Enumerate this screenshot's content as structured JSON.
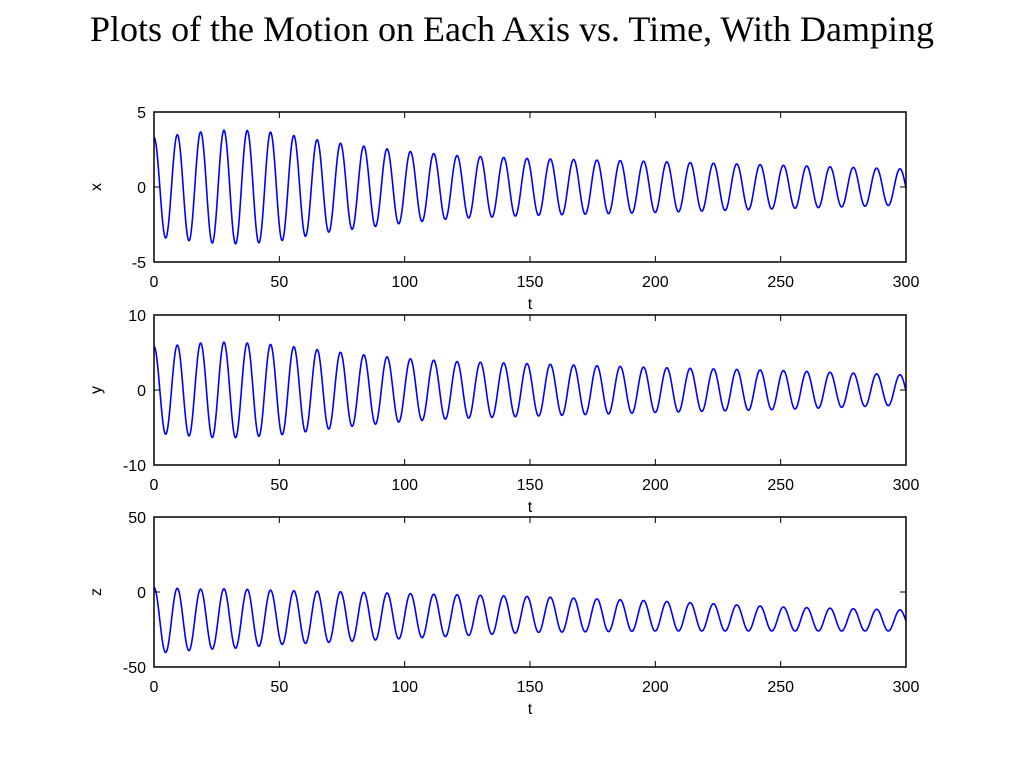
{
  "title": "Plots of the Motion on Each Axis vs. Time, With Damping",
  "line_color": "#0000ff",
  "chart_data": [
    {
      "type": "line",
      "title": "",
      "xlabel": "t",
      "ylabel": "x",
      "xlim": [
        0,
        300
      ],
      "ylim": [
        -5,
        5
      ],
      "xticks": [
        "0",
        "50",
        "100",
        "150",
        "200",
        "250",
        "300"
      ],
      "yticks": [
        "-5",
        "0",
        "5"
      ],
      "grid": false,
      "series": [
        {
          "offset": 0,
          "period": 9.3,
          "peaks": [
            [
              0,
              3.3
            ],
            [
              10,
              3.5
            ],
            [
              20,
              3.7
            ],
            [
              30,
              3.8
            ],
            [
              40,
              3.75
            ],
            [
              50,
              3.6
            ],
            [
              60,
              3.3
            ],
            [
              70,
              3.0
            ],
            [
              80,
              2.8
            ],
            [
              90,
              2.6
            ],
            [
              100,
              2.4
            ],
            [
              120,
              2.1
            ],
            [
              150,
              1.9
            ],
            [
              200,
              1.7
            ],
            [
              250,
              1.45
            ],
            [
              300,
              1.2
            ]
          ]
        }
      ]
    },
    {
      "type": "line",
      "title": "",
      "xlabel": "t",
      "ylabel": "y",
      "xlim": [
        0,
        300
      ],
      "ylim": [
        -10,
        10
      ],
      "xticks": [
        "0",
        "50",
        "100",
        "150",
        "200",
        "250",
        "300"
      ],
      "yticks": [
        "-10",
        "0",
        "10"
      ],
      "grid": false,
      "series": [
        {
          "offset": 0,
          "period": 9.3,
          "peaks": [
            [
              0,
              5.8
            ],
            [
              10,
              6.0
            ],
            [
              20,
              6.3
            ],
            [
              30,
              6.4
            ],
            [
              40,
              6.2
            ],
            [
              50,
              6.0
            ],
            [
              60,
              5.6
            ],
            [
              70,
              5.2
            ],
            [
              80,
              4.8
            ],
            [
              90,
              4.5
            ],
            [
              100,
              4.2
            ],
            [
              120,
              3.8
            ],
            [
              150,
              3.5
            ],
            [
              200,
              3.0
            ],
            [
              250,
              2.6
            ],
            [
              300,
              2.0
            ]
          ]
        }
      ]
    },
    {
      "type": "line",
      "title": "",
      "xlabel": "t",
      "ylabel": "z",
      "xlim": [
        0,
        300
      ],
      "ylim": [
        -50,
        50
      ],
      "xticks": [
        "0",
        "50",
        "100",
        "150",
        "200",
        "250",
        "300"
      ],
      "yticks": [
        "-50",
        "0",
        "50"
      ],
      "grid": false,
      "series": [
        {
          "offset_points": [
            [
              0,
              -19
            ],
            [
              50,
              -17
            ],
            [
              100,
              -16
            ],
            [
              150,
              -15
            ],
            [
              200,
              -16
            ],
            [
              250,
              -18
            ],
            [
              300,
              -19
            ]
          ],
          "period": 9.3,
          "peaks": [
            [
              0,
              22
            ],
            [
              10,
              21
            ],
            [
              20,
              20
            ],
            [
              30,
              20
            ],
            [
              40,
              19
            ],
            [
              50,
              18
            ],
            [
              70,
              17
            ],
            [
              100,
              15
            ],
            [
              150,
              12
            ],
            [
              200,
              10
            ],
            [
              250,
              8
            ],
            [
              300,
              7
            ]
          ]
        }
      ]
    }
  ]
}
